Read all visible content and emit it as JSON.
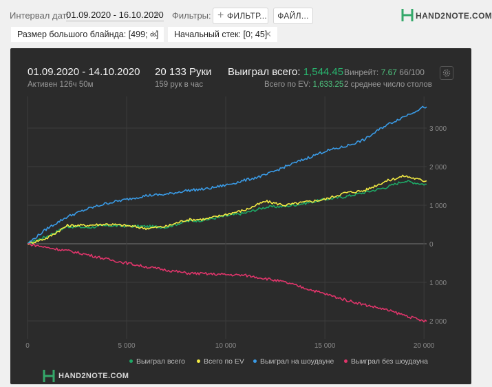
{
  "filters_bar": {
    "interval_label": "Интервал дат:",
    "date_range": "01.09.2020 - 16.10.2020",
    "filters_label": "Фильтры:",
    "filter_button": "ФИЛЬТР...",
    "file_button": "ФАЙЛ...",
    "logo": "HAND2NOTE.COM",
    "chips": [
      {
        "label": "Размер большого блайнда: [499; ∞]"
      },
      {
        "label": "Начальный стек: [0; 45]"
      }
    ]
  },
  "summary": {
    "period": "01.09.2020 - 14.10.2020",
    "active": "Активен 126ч 50м",
    "hands": "20 133 Руки",
    "hands_per_hour": "159 рук в час",
    "won_total_label": "Выиграл всего:",
    "won_total_value": "1,544.45",
    "ev_label": "Всего по EV:",
    "ev_value": "1,633.25",
    "winrate_label": "Винрейт:",
    "winrate_value": "7.67",
    "winrate_suffix": "66/100",
    "tables": "2 среднее число столов"
  },
  "watermark": "HAND2NOTE.COM",
  "colors": {
    "won": "#1ea866",
    "ev": "#f2ea43",
    "showdown": "#3a9be6",
    "no_showdown": "#e0356b"
  },
  "chart_data": {
    "type": "line",
    "x_range": [
      0,
      20133
    ],
    "ylim": [
      -2000,
      3600
    ],
    "y_ticks": [
      3000,
      2000,
      1000,
      0,
      -1000,
      -2000
    ],
    "y_tick_labels": [
      "3 000",
      "2 000",
      "1 000",
      "0",
      "1 000",
      "2 000"
    ],
    "x_ticks": [
      0,
      5000,
      10000,
      15000,
      20000
    ],
    "x_tick_labels": [
      "0",
      "5 000",
      "10 000",
      "15 000",
      "20 000"
    ],
    "grid": true,
    "legend_position": "bottom",
    "series": [
      {
        "name": "Выиграл всего",
        "color_key": "won",
        "x": [
          0,
          1000,
          2000,
          3000,
          4000,
          5000,
          6000,
          7000,
          8000,
          9000,
          10000,
          11000,
          12000,
          13000,
          14000,
          15000,
          16000,
          17000,
          18000,
          19000,
          20000
        ],
        "y": [
          0,
          200,
          450,
          420,
          470,
          460,
          450,
          430,
          580,
          620,
          720,
          800,
          950,
          970,
          1050,
          1150,
          1220,
          1330,
          1450,
          1630,
          1544
        ]
      },
      {
        "name": "Всего по EV",
        "color_key": "ev",
        "x": [
          0,
          1000,
          2000,
          3000,
          4000,
          5000,
          6000,
          7000,
          8000,
          9000,
          10000,
          11000,
          12000,
          13000,
          14000,
          15000,
          16000,
          17000,
          18000,
          19000,
          20000
        ],
        "y": [
          0,
          150,
          470,
          480,
          510,
          470,
          400,
          450,
          620,
          640,
          760,
          880,
          1100,
          1000,
          1080,
          1150,
          1320,
          1380,
          1610,
          1760,
          1633
        ]
      },
      {
        "name": "Выиграл на шоудауне",
        "color_key": "showdown",
        "x": [
          0,
          1000,
          2000,
          3000,
          4000,
          5000,
          6000,
          7000,
          8000,
          9000,
          10000,
          11000,
          12000,
          13000,
          14000,
          15000,
          16000,
          17000,
          18000,
          19000,
          20000
        ],
        "y": [
          0,
          400,
          700,
          900,
          1050,
          1150,
          1250,
          1280,
          1380,
          1420,
          1520,
          1650,
          1780,
          2000,
          2200,
          2400,
          2520,
          2700,
          3050,
          3300,
          3550
        ]
      },
      {
        "name": "Выиграл без шоудауна",
        "color_key": "no_showdown",
        "x": [
          0,
          1000,
          2000,
          3000,
          4000,
          5000,
          6000,
          7000,
          8000,
          9000,
          10000,
          11000,
          12000,
          13000,
          14000,
          15000,
          16000,
          17000,
          18000,
          19000,
          20000
        ],
        "y": [
          0,
          -100,
          -180,
          -280,
          -400,
          -500,
          -600,
          -680,
          -760,
          -780,
          -800,
          -820,
          -900,
          -1000,
          -1150,
          -1300,
          -1450,
          -1580,
          -1700,
          -1850,
          -2010
        ]
      }
    ]
  }
}
